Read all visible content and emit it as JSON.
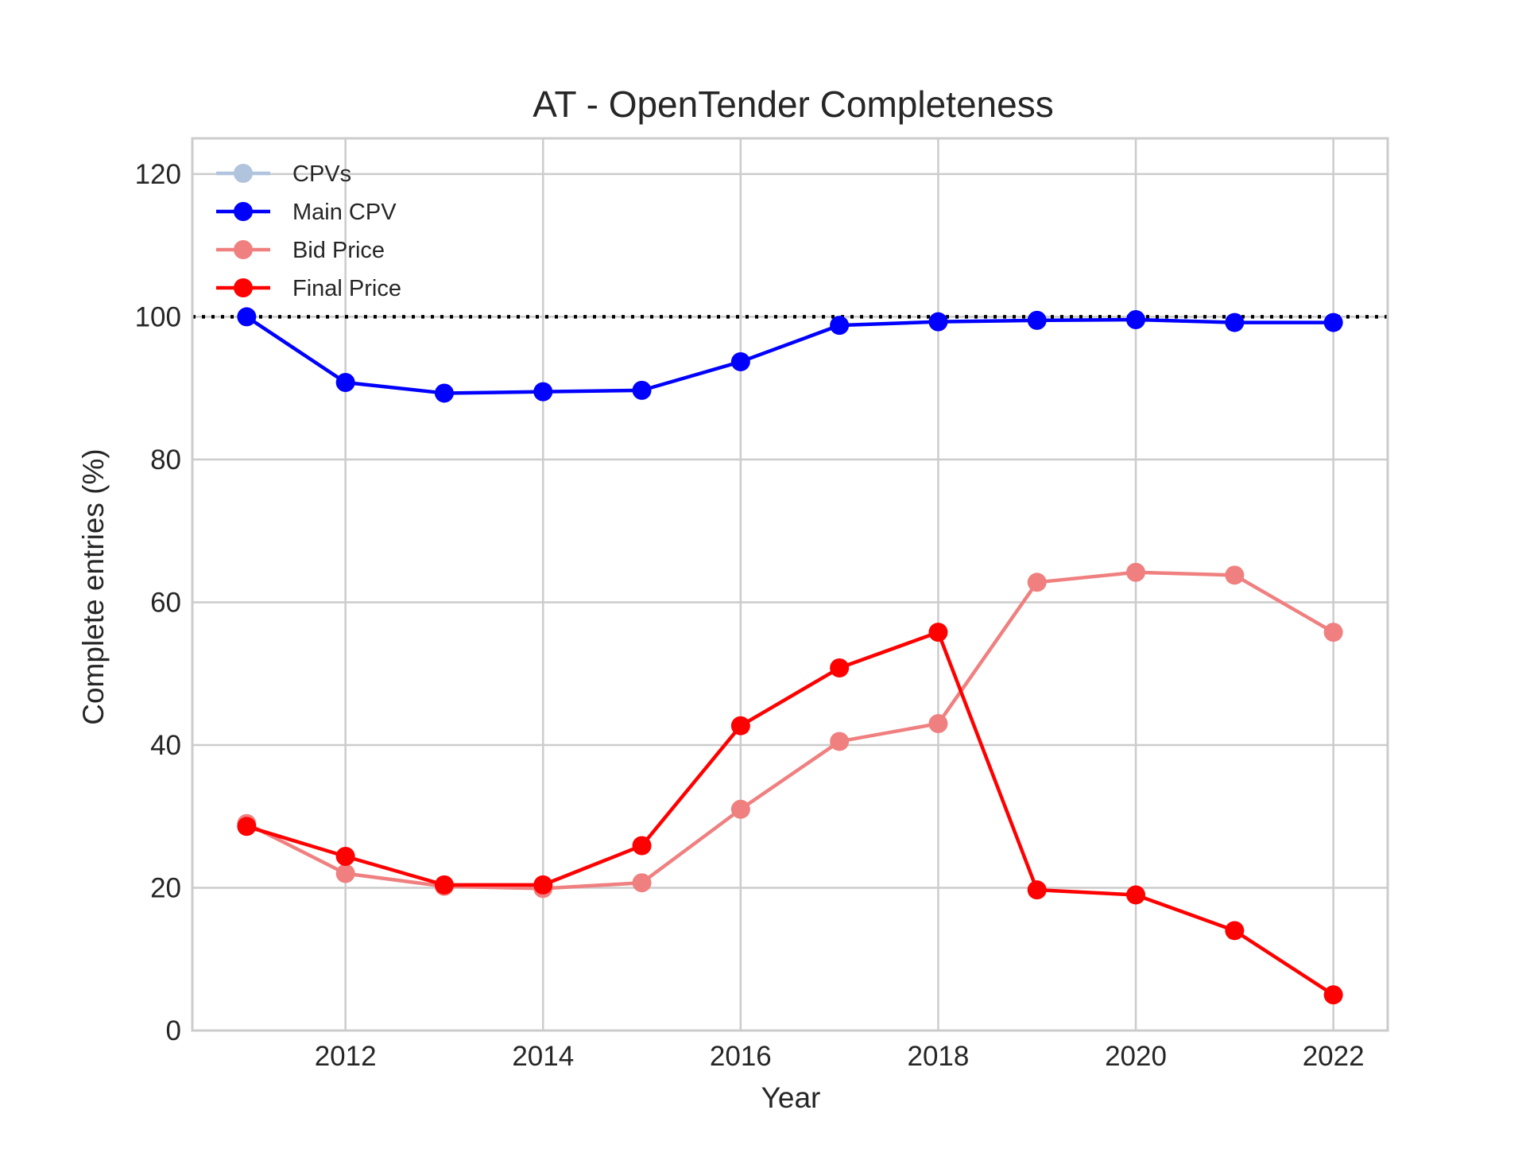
{
  "chart_data": {
    "type": "line",
    "title": "AT - OpenTender Completeness",
    "xlabel": "Year",
    "ylabel": "Complete entries (%)",
    "x": [
      2011,
      2012,
      2013,
      2014,
      2015,
      2016,
      2017,
      2018,
      2019,
      2020,
      2021,
      2022
    ],
    "xlim": [
      2010.45,
      2022.55
    ],
    "ylim": [
      0,
      125
    ],
    "x_ticks": [
      2012,
      2014,
      2016,
      2018,
      2020,
      2022
    ],
    "y_ticks": [
      0,
      20,
      40,
      60,
      80,
      100,
      120
    ],
    "grid": true,
    "legend_position": "upper-left",
    "reference_line": {
      "y": 100,
      "style": "dotted",
      "color": "#000000"
    },
    "series": [
      {
        "name": "CPVs",
        "color": "#b0c4de",
        "values": [
          null,
          null,
          null,
          null,
          null,
          null,
          null,
          null,
          null,
          null,
          null,
          null
        ]
      },
      {
        "name": "Main CPV",
        "color": "#0000ff",
        "values": [
          100.0,
          90.8,
          89.3,
          89.5,
          89.7,
          93.7,
          98.8,
          99.3,
          99.5,
          99.6,
          99.2,
          99.2
        ]
      },
      {
        "name": "Bid Price",
        "color": "#f08080",
        "values": [
          29.0,
          22.0,
          20.2,
          19.9,
          20.7,
          31.0,
          40.5,
          43.0,
          62.8,
          64.2,
          63.8,
          55.8
        ]
      },
      {
        "name": "Final Price",
        "color": "#ff0000",
        "values": [
          28.6,
          24.4,
          20.4,
          20.4,
          25.9,
          42.7,
          50.8,
          55.8,
          19.7,
          19.0,
          14.0,
          5.0
        ]
      }
    ]
  }
}
